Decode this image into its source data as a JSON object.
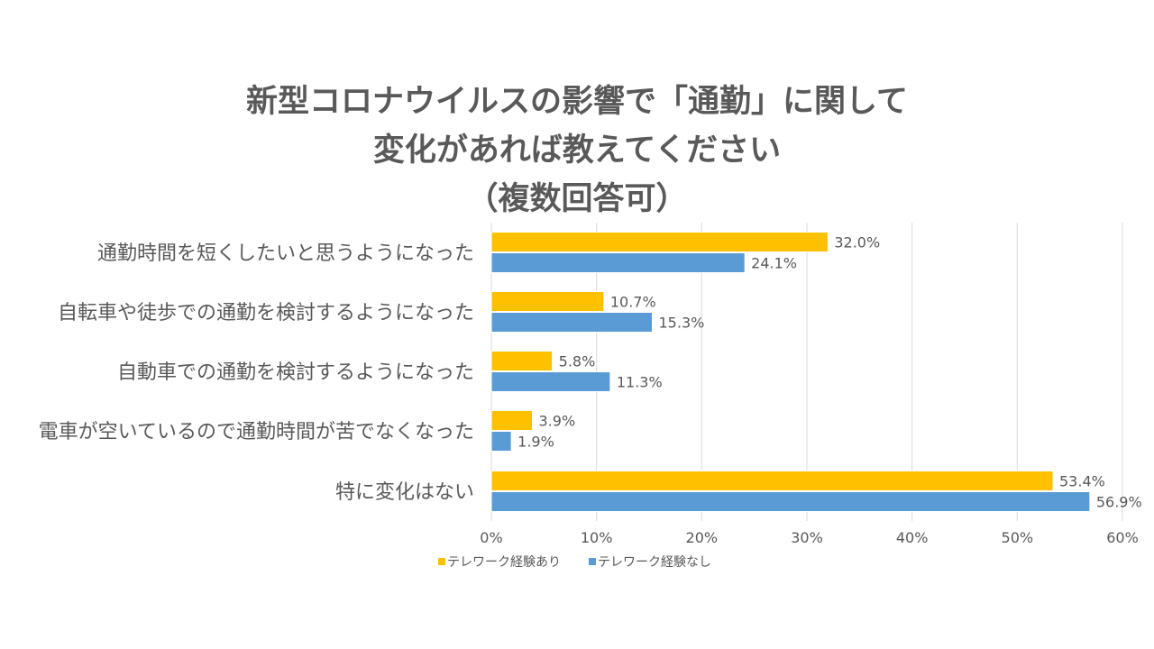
{
  "chart_data": {
    "type": "bar",
    "orientation": "horizontal",
    "title_lines": [
      "新型コロナウイルスの影響で「通勤」に関して",
      "変化があれば教えてください",
      "（複数回答可）"
    ],
    "categories": [
      "通勤時間を短くしたいと思うようになった",
      "自転車や徒歩での通勤を検討するようになった",
      "自動車での通勤を検討するようになった",
      "電車が空いているので通勤時間が苦でなくなった",
      "特に変化はない"
    ],
    "series": [
      {
        "name": "テレワーク経験あり",
        "color": "#FFC000",
        "values": [
          32.0,
          10.7,
          5.8,
          3.9,
          53.4
        ]
      },
      {
        "name": "テレワーク経験なし",
        "color": "#5B9BD5",
        "values": [
          24.1,
          15.3,
          11.3,
          1.9,
          56.9
        ]
      }
    ],
    "value_labels": [
      [
        "32.0%",
        "10.7%",
        "5.8%",
        "3.9%",
        "53.4%"
      ],
      [
        "24.1%",
        "15.3%",
        "11.3%",
        "1.9%",
        "56.9%"
      ]
    ],
    "xlim": [
      0,
      60
    ],
    "x_ticks": [
      0,
      10,
      20,
      30,
      40,
      50,
      60
    ],
    "x_tick_labels": [
      "0%",
      "10%",
      "20%",
      "30%",
      "40%",
      "50%",
      "60%"
    ],
    "grid": true,
    "legend_position": "bottom"
  }
}
